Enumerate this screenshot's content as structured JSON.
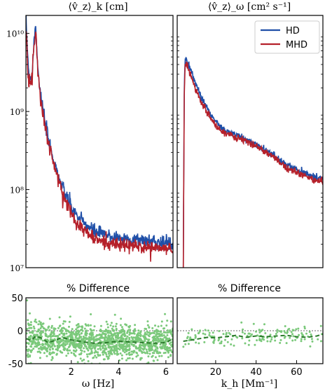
{
  "chart_data": [
    {
      "panel": "top-left",
      "type": "line",
      "title": "⟨v̂_z⟩_k  [cm]",
      "xlabel": "",
      "ylabel": "",
      "yscale": "log",
      "ylim": [
        10000000,
        17000000000
      ],
      "xlim": [
        0.08,
        6.3
      ],
      "yticks": [
        10000000,
        100000000,
        1000000000,
        10000000000
      ],
      "ytick_labels": [
        "10⁷",
        "10⁸",
        "10⁹",
        "10¹⁰"
      ],
      "series": [
        {
          "name": "HD",
          "color": "#1f4fa8",
          "x": [
            0.08,
            0.2,
            0.3,
            0.35,
            0.42,
            0.5,
            0.55,
            0.62,
            0.7,
            0.8,
            0.9,
            1.0,
            1.2,
            1.4,
            1.6,
            1.8,
            2.0,
            2.2,
            2.5,
            2.8,
            3.0,
            3.5,
            4.0,
            4.5,
            5.0,
            5.5,
            6.0,
            6.3
          ],
          "y": [
            16000000000,
            3000000000,
            2700000000,
            3200000000,
            8000000000,
            13000000000,
            5500000000,
            2800000000,
            1600000000,
            1050000000,
            700000000,
            480000000,
            280000000,
            170000000,
            110000000,
            80000000,
            60000000,
            48000000,
            38000000,
            32000000,
            29000000,
            26000000,
            24000000,
            23000000,
            22500000,
            22000000,
            21000000,
            20000000
          ]
        },
        {
          "name": "MHD",
          "color": "#b5202a",
          "x": [
            0.08,
            0.2,
            0.3,
            0.35,
            0.42,
            0.5,
            0.55,
            0.62,
            0.7,
            0.8,
            0.9,
            1.0,
            1.2,
            1.4,
            1.6,
            1.8,
            2.0,
            2.2,
            2.5,
            2.8,
            3.0,
            3.5,
            4.0,
            4.5,
            5.0,
            5.5,
            6.0,
            6.3
          ],
          "y": [
            13000000000,
            2500000000,
            2300000000,
            2800000000,
            7000000000,
            12000000000,
            5000000000,
            2500000000,
            1450000000,
            950000000,
            630000000,
            430000000,
            250000000,
            150000000,
            95000000,
            68000000,
            50000000,
            40000000,
            31000000,
            26000000,
            23000000,
            21000000,
            19500000,
            19000000,
            18500000,
            18000000,
            17500000,
            17000000
          ]
        }
      ]
    },
    {
      "panel": "top-right",
      "type": "line",
      "title": "⟨v̂_z⟩_ω  [cm² s⁻¹]",
      "xlabel": "",
      "ylabel": "",
      "yscale": "log",
      "ylim": [
        10000000,
        17000000000
      ],
      "xlim": [
        1,
        73
      ],
      "legend": "top-right",
      "series": [
        {
          "name": "HD",
          "color": "#1f4fa8",
          "x": [
            4,
            4.5,
            5,
            6,
            8,
            10,
            13,
            16,
            20,
            25,
            30,
            35,
            40,
            45,
            50,
            55,
            60,
            65,
            70,
            73
          ],
          "y": [
            10000000,
            2000000000,
            5200000000,
            4300000000,
            3300000000,
            2300000000,
            1500000000,
            1100000000,
            730000000,
            560000000,
            500000000,
            440000000,
            380000000,
            320000000,
            260000000,
            210000000,
            180000000,
            160000000,
            140000000,
            135000000
          ]
        },
        {
          "name": "MHD",
          "color": "#b5202a",
          "x": [
            4,
            4.5,
            5,
            6,
            8,
            10,
            13,
            16,
            20,
            25,
            30,
            35,
            40,
            45,
            50,
            55,
            60,
            65,
            70,
            73
          ],
          "y": [
            10000000,
            1800000000,
            4300000000,
            3800000000,
            2800000000,
            2000000000,
            1300000000,
            950000000,
            650000000,
            520000000,
            470000000,
            410000000,
            360000000,
            300000000,
            240000000,
            195000000,
            165000000,
            145000000,
            130000000,
            128000000
          ]
        }
      ]
    },
    {
      "panel": "bottom-left",
      "type": "scatter",
      "title": "% Difference",
      "xlabel": "ω  [Hz]",
      "ylabel": "",
      "xlim": [
        0.08,
        6.3
      ],
      "ylim": [
        -50,
        50
      ],
      "xticks": [
        2,
        4,
        6
      ],
      "yticks": [
        -50,
        0,
        50
      ],
      "reference_line": 0,
      "trend": {
        "color": "#2a7a2a",
        "x": [
          0.1,
          0.3,
          0.5,
          0.8,
          1.0,
          1.3,
          1.6,
          2.0,
          2.5,
          3.0,
          3.5,
          4.0,
          4.5,
          5.0,
          5.5,
          6.0,
          6.3
        ],
        "y": [
          -12,
          -15,
          -8,
          -12,
          -18,
          -15,
          -10,
          -14,
          -17,
          -19,
          -18,
          -16,
          -17,
          -18,
          -19,
          -18,
          -12
        ]
      },
      "scatter_color": "#7bc97b",
      "scatter_spread": 12
    },
    {
      "panel": "bottom-right",
      "type": "scatter",
      "title": "% Difference",
      "xlabel": "k_h  [Mm⁻¹]",
      "ylabel": "",
      "xlim": [
        1,
        73
      ],
      "ylim": [
        -50,
        50
      ],
      "xticks": [
        20,
        40,
        60
      ],
      "reference_line": 0,
      "trend": {
        "color": "#2a7a2a",
        "x": [
          4,
          8,
          12,
          16,
          20,
          25,
          30,
          35,
          40,
          45,
          50,
          55,
          60,
          65,
          70,
          73
        ],
        "y": [
          -16,
          -14,
          -12,
          -10,
          -11,
          -9,
          -7,
          -10,
          -8,
          -9,
          -8,
          -7,
          -9,
          -10,
          -8,
          -5
        ]
      },
      "scatter_color": "#7bc97b",
      "scatter_spread": 7
    }
  ]
}
